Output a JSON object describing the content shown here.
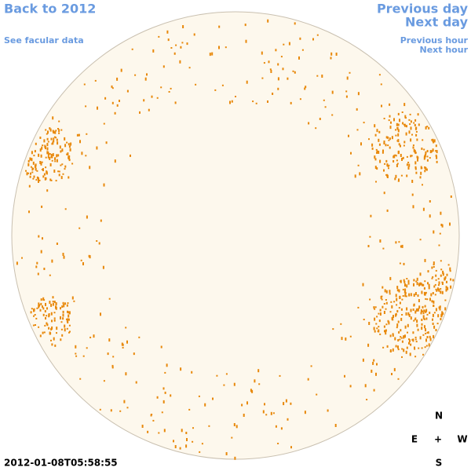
{
  "nav": {
    "back": "Back to 2012",
    "facular": "See facular data",
    "previous_day": "Previous day",
    "next_day": "Next day",
    "previous_hour": "Previous hour",
    "next_hour": "Next hour"
  },
  "timestamp": "2012-01-08T05:58:55",
  "compass": {
    "north": "N",
    "east": "E",
    "center": "+",
    "west": "W",
    "south": "S"
  }
}
